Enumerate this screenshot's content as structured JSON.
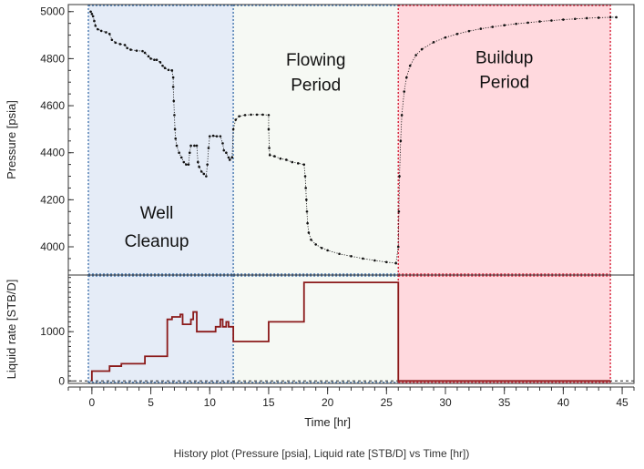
{
  "chart_data": [
    {
      "type": "scatter",
      "id": "pressure",
      "ylabel": "Pressure [psia]",
      "ylim": [
        3880,
        5030
      ],
      "yticks": [
        4000,
        4200,
        4400,
        4600,
        4800,
        5000
      ],
      "xlim": [
        -2,
        46
      ],
      "grid": false,
      "regions": [
        {
          "name": "well-cleanup",
          "label_lines": [
            "Well",
            "Cleanup"
          ],
          "x_start": -0.3,
          "x_end": 12,
          "fill": "#e5ecf7",
          "border": "#4a7ab0",
          "label_x": 5.5,
          "label_y": [
            4120,
            4000
          ]
        },
        {
          "name": "flowing-period",
          "label_lines": [
            "Flowing",
            "Period"
          ],
          "x_start": 12,
          "x_end": 26,
          "fill": "#f6f9f4",
          "border": "#4a7ab0",
          "label_x": 19,
          "label_y": [
            4770,
            4665
          ]
        },
        {
          "name": "buildup-period",
          "label_lines": [
            "Buildup",
            "Period"
          ],
          "x_start": 26,
          "x_end": 44,
          "fill": "#ffd9de",
          "border": "#d7263d",
          "label_x": 35,
          "label_y": [
            4780,
            4675
          ]
        }
      ],
      "series": [
        {
          "color": "#111111",
          "points": [
            [
              -0.1,
              5000
            ],
            [
              0,
              4990
            ],
            [
              0.1,
              4980
            ],
            [
              0.2,
              4960
            ],
            [
              0.3,
              4940
            ],
            [
              0.5,
              4925
            ],
            [
              0.8,
              4918
            ],
            [
              1.2,
              4912
            ],
            [
              1.5,
              4905
            ],
            [
              1.7,
              4880
            ],
            [
              2.0,
              4868
            ],
            [
              2.4,
              4862
            ],
            [
              2.8,
              4858
            ],
            [
              3.0,
              4845
            ],
            [
              3.3,
              4838
            ],
            [
              3.8,
              4834
            ],
            [
              4.3,
              4832
            ],
            [
              4.5,
              4825
            ],
            [
              4.8,
              4810
            ],
            [
              5.0,
              4800
            ],
            [
              5.3,
              4795
            ],
            [
              5.5,
              4795
            ],
            [
              5.8,
              4785
            ],
            [
              6.0,
              4770
            ],
            [
              6.2,
              4760
            ],
            [
              6.5,
              4752
            ],
            [
              6.8,
              4750
            ],
            [
              6.9,
              4720
            ],
            [
              6.9,
              4680
            ],
            [
              6.95,
              4620
            ],
            [
              7.0,
              4560
            ],
            [
              7.05,
              4500
            ],
            [
              7.1,
              4460
            ],
            [
              7.2,
              4430
            ],
            [
              7.4,
              4400
            ],
            [
              7.6,
              4380
            ],
            [
              7.8,
              4360
            ],
            [
              8.0,
              4350
            ],
            [
              8.2,
              4350
            ],
            [
              8.3,
              4400
            ],
            [
              8.4,
              4430
            ],
            [
              8.7,
              4430
            ],
            [
              8.9,
              4430
            ],
            [
              9.0,
              4360
            ],
            [
              9.1,
              4340
            ],
            [
              9.3,
              4320
            ],
            [
              9.5,
              4310
            ],
            [
              9.7,
              4300
            ],
            [
              9.8,
              4350
            ],
            [
              9.9,
              4420
            ],
            [
              10.0,
              4470
            ],
            [
              10.3,
              4472
            ],
            [
              10.6,
              4470
            ],
            [
              10.9,
              4470
            ],
            [
              11.1,
              4440
            ],
            [
              11.2,
              4410
            ],
            [
              11.4,
              4400
            ],
            [
              11.6,
              4380
            ],
            [
              11.7,
              4370
            ],
            [
              11.9,
              4380
            ],
            [
              12.0,
              4500
            ],
            [
              12.2,
              4540
            ],
            [
              12.5,
              4555
            ],
            [
              13.0,
              4560
            ],
            [
              13.5,
              4562
            ],
            [
              14.0,
              4562
            ],
            [
              14.5,
              4562
            ],
            [
              15.0,
              4560
            ],
            [
              15.0,
              4500
            ],
            [
              15.05,
              4420
            ],
            [
              15.1,
              4390
            ],
            [
              15.5,
              4385
            ],
            [
              16.0,
              4375
            ],
            [
              16.5,
              4370
            ],
            [
              17.0,
              4360
            ],
            [
              17.5,
              4355
            ],
            [
              18.0,
              4350
            ],
            [
              18.1,
              4300
            ],
            [
              18.15,
              4250
            ],
            [
              18.2,
              4200
            ],
            [
              18.25,
              4150
            ],
            [
              18.3,
              4100
            ],
            [
              18.4,
              4060
            ],
            [
              18.6,
              4030
            ],
            [
              19.0,
              4010
            ],
            [
              19.5,
              3995
            ],
            [
              20.0,
              3985
            ],
            [
              21.0,
              3970
            ],
            [
              22.0,
              3960
            ],
            [
              23.0,
              3950
            ],
            [
              24.0,
              3942
            ],
            [
              25.0,
              3935
            ],
            [
              25.8,
              3930
            ],
            [
              26.0,
              4000
            ],
            [
              26.05,
              4150
            ],
            [
              26.1,
              4300
            ],
            [
              26.2,
              4450
            ],
            [
              26.3,
              4560
            ],
            [
              26.5,
              4660
            ],
            [
              26.7,
              4720
            ],
            [
              27.0,
              4770
            ],
            [
              27.5,
              4815
            ],
            [
              28.0,
              4840
            ],
            [
              29.0,
              4870
            ],
            [
              30.0,
              4890
            ],
            [
              31.0,
              4905
            ],
            [
              32.0,
              4917
            ],
            [
              33.0,
              4927
            ],
            [
              34.0,
              4935
            ],
            [
              35.0,
              4942
            ],
            [
              36.0,
              4948
            ],
            [
              37.0,
              4953
            ],
            [
              38.0,
              4958
            ],
            [
              39.0,
              4962
            ],
            [
              40.0,
              4966
            ],
            [
              41.0,
              4969
            ],
            [
              42.0,
              4972
            ],
            [
              43.0,
              4974
            ],
            [
              44.0,
              4976
            ],
            [
              44.5,
              4976
            ]
          ]
        }
      ]
    },
    {
      "type": "line",
      "step": true,
      "id": "rate",
      "ylabel": "Liquid rate [STB/D]",
      "ylim": [
        -50,
        2150
      ],
      "yticks": [
        0,
        1000
      ],
      "xlim": [
        -2,
        46
      ],
      "xticks": [
        0,
        5,
        10,
        15,
        20,
        25,
        30,
        35,
        40,
        45
      ],
      "xlabel": "Time [hr]",
      "grid": false,
      "regions": [
        {
          "name": "well-cleanup",
          "x_start": -0.3,
          "x_end": 12,
          "fill": "#e5ecf7",
          "border": "#4a7ab0"
        },
        {
          "name": "flowing-period",
          "x_start": 12,
          "x_end": 26,
          "fill": "#f6f9f4",
          "border": "#4a7ab0"
        },
        {
          "name": "buildup-period",
          "x_start": 26,
          "x_end": 44,
          "fill": "#ffd9de",
          "border": "#d7263d"
        }
      ],
      "zero_line_dashed": true,
      "series": [
        {
          "color": "#8b1a1a",
          "points": [
            [
              0,
              0
            ],
            [
              0,
              200
            ],
            [
              1.5,
              200
            ],
            [
              1.5,
              300
            ],
            [
              2.5,
              300
            ],
            [
              2.5,
              350
            ],
            [
              4.5,
              350
            ],
            [
              4.5,
              500
            ],
            [
              6.4,
              500
            ],
            [
              6.4,
              1250
            ],
            [
              6.8,
              1250
            ],
            [
              6.8,
              1300
            ],
            [
              7.5,
              1300
            ],
            [
              7.5,
              1350
            ],
            [
              7.7,
              1350
            ],
            [
              7.7,
              1150
            ],
            [
              8.4,
              1150
            ],
            [
              8.4,
              1250
            ],
            [
              8.6,
              1250
            ],
            [
              8.6,
              1400
            ],
            [
              8.9,
              1400
            ],
            [
              8.9,
              1000
            ],
            [
              10.5,
              1000
            ],
            [
              10.5,
              1100
            ],
            [
              10.9,
              1100
            ],
            [
              10.9,
              1250
            ],
            [
              11.1,
              1250
            ],
            [
              11.1,
              1100
            ],
            [
              11.4,
              1100
            ],
            [
              11.4,
              1200
            ],
            [
              11.6,
              1200
            ],
            [
              11.6,
              1100
            ],
            [
              12,
              1100
            ],
            [
              12,
              800
            ],
            [
              15,
              800
            ],
            [
              15,
              1200
            ],
            [
              18,
              1200
            ],
            [
              18,
              2000
            ],
            [
              26,
              2000
            ],
            [
              26,
              0
            ],
            [
              44,
              0
            ]
          ]
        }
      ]
    }
  ],
  "footer": {
    "caption": "History plot (Pressure [psia], Liquid rate [STB/D] vs Time [hr])"
  },
  "colors": {
    "axis": "#333333",
    "pressure_series": "#111111",
    "rate_series": "#8b1a1a"
  }
}
